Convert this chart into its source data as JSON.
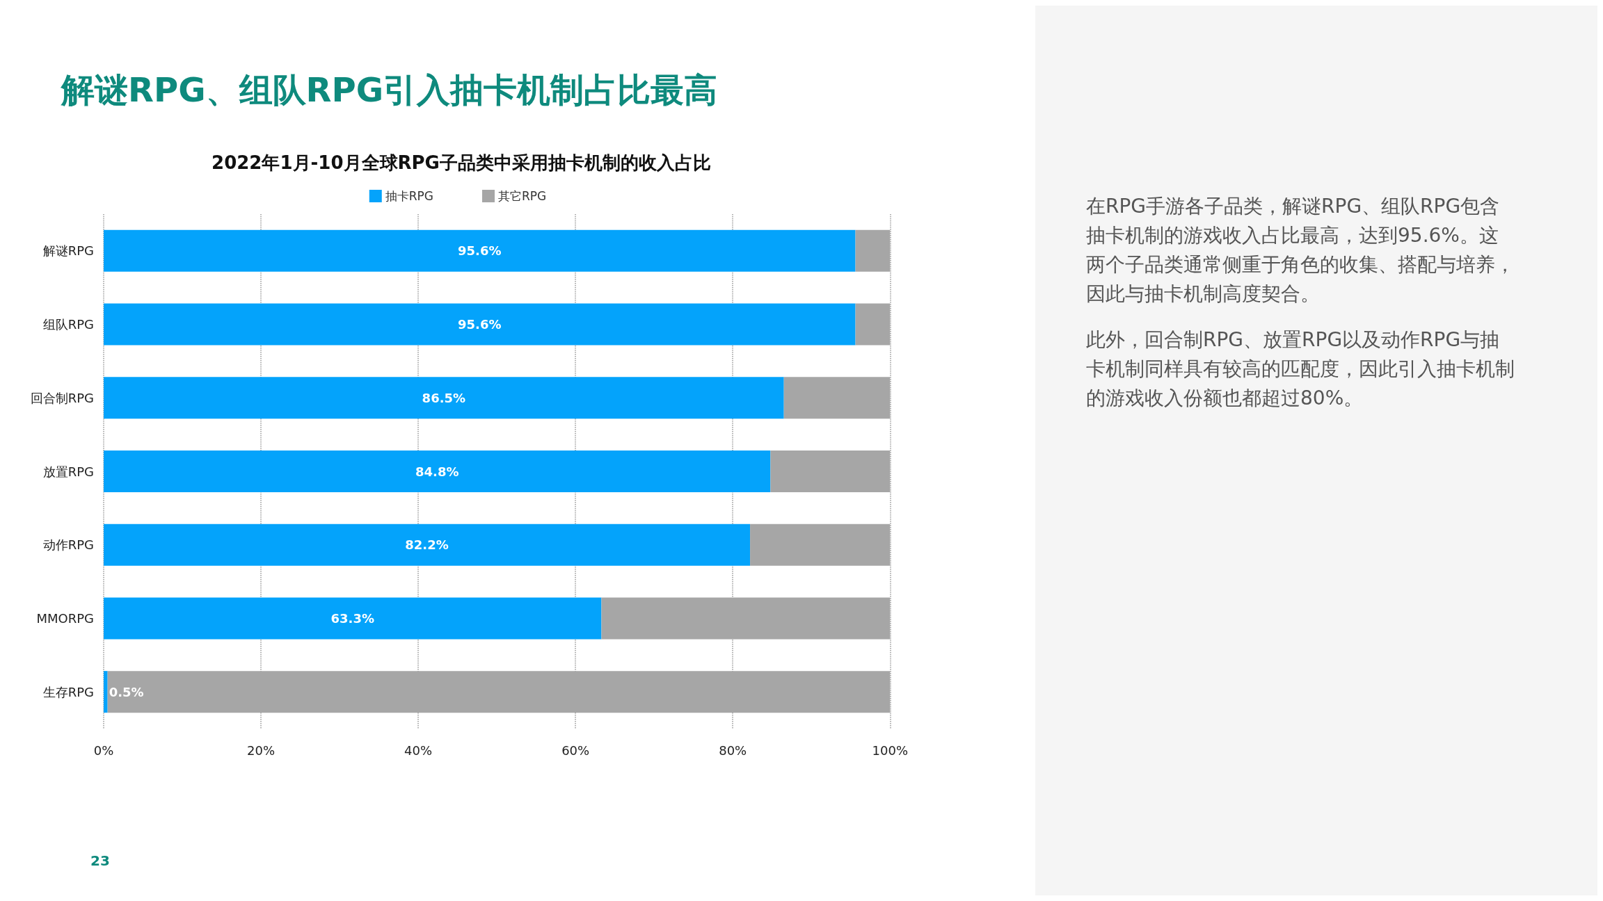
{
  "chart_data": {
    "type": "bar",
    "orientation": "horizontal",
    "stacked": true,
    "title": "解谜RPG、组队RPG引入抽卡机制占比最高",
    "subtitle": "2022年1月-10月全球RPG子品类中采用抽卡机制的收入占比",
    "categories": [
      "解谜RPG",
      "组队RPG",
      "回合制RPG",
      "放置RPG",
      "动作RPG",
      "MMORPG",
      "生存RPG"
    ],
    "series": [
      {
        "name": "抽卡RPG",
        "color": "#04a3fb",
        "values": [
          95.6,
          95.6,
          86.5,
          84.8,
          82.2,
          63.3,
          0.5
        ],
        "value_labels": [
          "95.6%",
          "95.6%",
          "86.5%",
          "84.8%",
          "82.2%",
          "63.3%",
          "0.5%"
        ]
      },
      {
        "name": "其它RPG",
        "color": "#a6a6a6",
        "values": [
          4.4,
          4.4,
          13.5,
          15.2,
          17.8,
          36.7,
          99.5
        ]
      }
    ],
    "xlim": [
      0,
      100
    ],
    "xticks": [
      {
        "value": 0,
        "label": "0%"
      },
      {
        "value": 20,
        "label": "20%"
      },
      {
        "value": 40,
        "label": "40%"
      },
      {
        "value": 60,
        "label": "60%"
      },
      {
        "value": 80,
        "label": "80%"
      },
      {
        "value": 100,
        "label": "100%"
      }
    ],
    "grid": "x",
    "legend": "top",
    "annotations": [
      "在RPG手游各子品类，解谜RPG、组队RPG包含抽卡机制的游戏收入占比最高，达到95.6%。这两个子品类通常侧重于角色的收集、搭配与培养，因此与抽卡机制高度契合。",
      "此外，回合制RPG、放置RPG以及动作RPG与抽卡机制同样具有较高的匹配度，因此引入抽卡机制的游戏收入份额也都超过80%。",
      "23"
    ]
  }
}
